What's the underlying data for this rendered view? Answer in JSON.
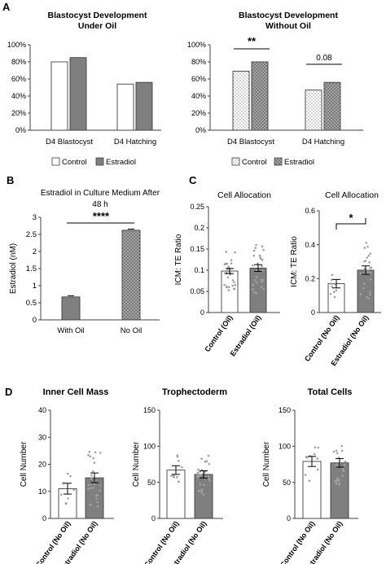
{
  "panel_letters": {
    "A": "A",
    "B": "B",
    "C": "C",
    "D": "D"
  },
  "colors": {
    "control": "#ffffff",
    "estradiol": "#7f7f7f",
    "axis": "#404040",
    "gray_bar": "#808080",
    "dot_fill": "#a0a0a0"
  },
  "legend": {
    "control": "Control",
    "estradiol": "Estradiol"
  },
  "chart_data": [
    {
      "id": "a1",
      "type": "bar",
      "title": [
        "Blastocyst Development",
        "Under Oil"
      ],
      "categories": [
        "D4 Blastocyst",
        "D4 Hatching"
      ],
      "series": [
        {
          "name": "Control",
          "values": [
            80,
            54
          ]
        },
        {
          "name": "Estradiol",
          "values": [
            85,
            56
          ]
        }
      ],
      "ylim": [
        0,
        100
      ],
      "yticks": [
        "0%",
        "20%",
        "40%",
        "60%",
        "80%",
        "100%"
      ],
      "legend_position": "bottom"
    },
    {
      "id": "a2",
      "type": "bar",
      "title": [
        "Blastocyst Development",
        "Without Oil"
      ],
      "categories": [
        "D4 Blastocyst",
        "D4 Hatching"
      ],
      "series": [
        {
          "name": "Control",
          "values": [
            69,
            47
          ]
        },
        {
          "name": "Estradiol",
          "values": [
            80,
            56
          ]
        }
      ],
      "ylim": [
        0,
        100
      ],
      "yticks": [
        "0%",
        "20%",
        "40%",
        "60%",
        "80%",
        "100%"
      ],
      "annotations": [
        "**",
        "0.08"
      ],
      "legend_position": "bottom"
    },
    {
      "id": "b",
      "type": "bar",
      "title": [
        "Estradiol in Culture Medium After",
        "48 h"
      ],
      "categories": [
        "With Oil",
        "No Oil"
      ],
      "values": [
        0.67,
        2.62
      ],
      "ylabel": "Estradiol (nM)",
      "ylim": [
        0,
        3
      ],
      "yticks": [
        "0",
        "0.5",
        "1",
        "1.5",
        "2",
        "2.5",
        "3"
      ],
      "annotations": [
        "****"
      ]
    },
    {
      "id": "c1",
      "type": "bar",
      "title": "Cell Allocation",
      "categories": [
        "Control (Oil)",
        "Estradiol (Oil)"
      ],
      "values": [
        0.098,
        0.105
      ],
      "ylabel": "ICM: TE Ratio",
      "ylim": [
        0,
        0.25
      ],
      "yticks": [
        "0",
        "0.05",
        "0.1",
        "0.15",
        "0.2",
        "0.25"
      ]
    },
    {
      "id": "c2",
      "type": "bar",
      "title": "Cell Allocation",
      "categories": [
        "Control (No Oil)",
        "Estradiol (No Oil)"
      ],
      "values": [
        0.17,
        0.25
      ],
      "ylabel": "ICM: TE Ratio",
      "ylim": [
        0,
        0.6
      ],
      "yticks": [
        "0",
        "0.2",
        "0.4",
        "0.6"
      ],
      "annotations": [
        "*"
      ]
    },
    {
      "id": "d1",
      "type": "bar",
      "title": "Inner  Cell  Mass",
      "categories": [
        "Control (No Oil)",
        "Estradiol (No Oil)"
      ],
      "values": [
        11,
        15
      ],
      "ylabel": "Cell Number",
      "ylim": [
        0,
        40
      ],
      "yticks": [
        "0",
        "10",
        "20",
        "30",
        "40"
      ]
    },
    {
      "id": "d2",
      "type": "bar",
      "title": "Trophectoderm",
      "categories": [
        "Control (No Oil)",
        "Estradiol (No Oil)"
      ],
      "values": [
        67,
        61
      ],
      "ylabel": "Cell Number",
      "ylim": [
        0,
        150
      ],
      "yticks": [
        "0",
        "50",
        "100",
        "150"
      ]
    },
    {
      "id": "d3",
      "type": "bar",
      "title": "Total Cells",
      "categories": [
        "Control (No Oil)",
        "Estradiol (No Oil)"
      ],
      "values": [
        79,
        77
      ],
      "ylabel": "Cell Number",
      "ylim": [
        0,
        150
      ],
      "yticks": [
        "0",
        "50",
        "100",
        "150"
      ]
    }
  ]
}
